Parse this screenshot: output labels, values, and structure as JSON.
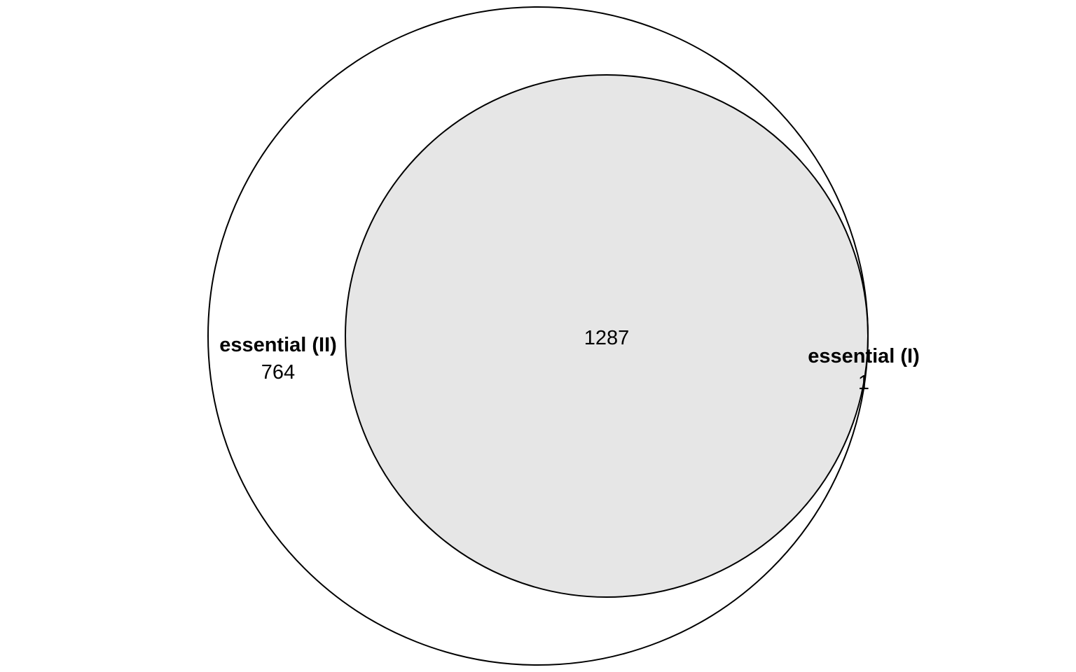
{
  "chart_data": {
    "type": "venn",
    "sets": [
      {
        "name": "essential (II)",
        "only_count": "764"
      },
      {
        "name": "essential (I)",
        "only_count": "1"
      }
    ],
    "intersection_count": "1287",
    "colors": {
      "background": "#ffffff",
      "intersection_fill": "#e6e6e6",
      "stroke": "#000000"
    }
  }
}
